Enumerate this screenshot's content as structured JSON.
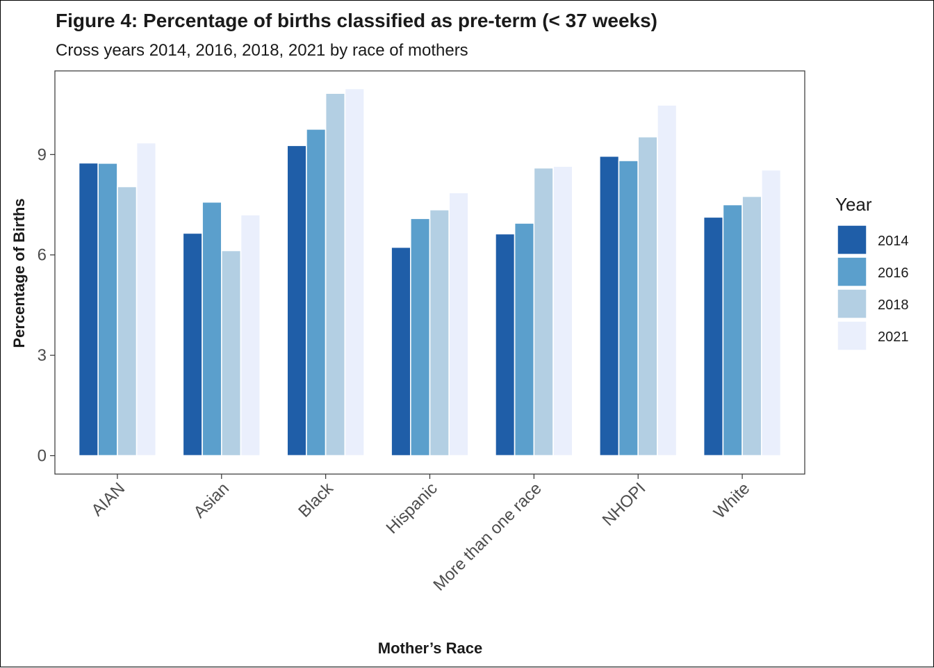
{
  "chart_data": {
    "type": "bar",
    "title": "Figure 4: Percentage of births classified as pre-term (< 37 weeks)",
    "subtitle": "Cross years 2014, 2016, 2018, 2021 by race of mothers",
    "xlabel": "Mother’s Race",
    "ylabel": "Percentage of Births",
    "categories": [
      "AIAN",
      "Asian",
      "Black",
      "Hispanic",
      "More than one race",
      "NHOPI",
      "White"
    ],
    "series": [
      {
        "name": "2014",
        "color": "#1f5ea8",
        "values": [
          8.75,
          6.65,
          9.27,
          6.23,
          6.63,
          8.95,
          7.13
        ]
      },
      {
        "name": "2016",
        "color": "#5b9fcc",
        "values": [
          8.74,
          7.58,
          9.76,
          7.09,
          6.95,
          8.82,
          7.5
        ]
      },
      {
        "name": "2018",
        "color": "#b3cfe3",
        "values": [
          8.04,
          6.13,
          10.83,
          7.35,
          8.6,
          9.53,
          7.75
        ]
      },
      {
        "name": "2021",
        "color": "#eaeffc",
        "values": [
          9.35,
          7.2,
          10.97,
          7.86,
          8.65,
          10.48,
          8.54
        ]
      }
    ],
    "yticks": [
      0,
      3,
      6,
      9
    ],
    "ylim": [
      -0.55,
      11.5
    ],
    "legend_title": "Year",
    "legend_position": "right",
    "grid": false
  }
}
